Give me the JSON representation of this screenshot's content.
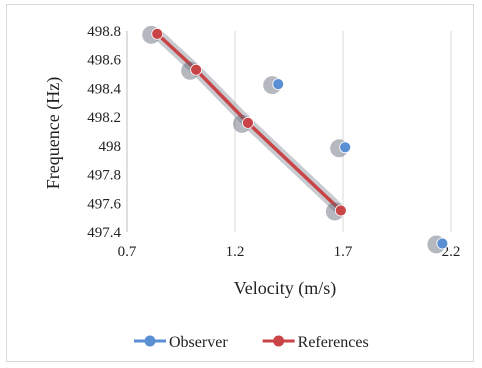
{
  "chart_data": {
    "type": "scatter",
    "title": "",
    "xlabel": "Velocity (m/s)",
    "ylabel": "Frequence (Hz)",
    "xlim": [
      0.7,
      2.2
    ],
    "ylim": [
      497.4,
      498.8
    ],
    "x_ticks": [
      "0.7",
      "1.2",
      "1.7",
      "2.2"
    ],
    "y_ticks": [
      "498.8",
      "498.6",
      "498.4",
      "498.2",
      "498",
      "497.8",
      "497.6",
      "497.4"
    ],
    "grid": "vertical",
    "legend_position": "bottom",
    "series": [
      {
        "name": "Observer",
        "color": "#5B8FD4",
        "marker": "circle",
        "show_line": false,
        "points": [
          {
            "x": 1.4,
            "y": 498.43
          },
          {
            "x": 1.71,
            "y": 497.99
          },
          {
            "x": 2.16,
            "y": 497.32
          }
        ]
      },
      {
        "name": "References",
        "color": "#C94447",
        "marker": "circle",
        "show_line": true,
        "points": [
          {
            "x": 0.84,
            "y": 498.78
          },
          {
            "x": 1.02,
            "y": 498.53
          },
          {
            "x": 1.26,
            "y": 498.16
          },
          {
            "x": 1.69,
            "y": 497.55
          }
        ]
      }
    ]
  }
}
